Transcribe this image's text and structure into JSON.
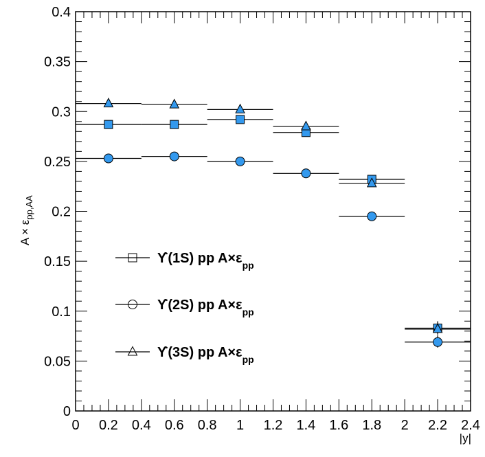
{
  "chart_data": {
    "type": "scatter",
    "xlabel": "|y|",
    "ylabel_main": "A × ε",
    "ylabel_sub": "pp,AA",
    "xlim": [
      0,
      2.4
    ],
    "ylim": [
      0,
      0.4
    ],
    "x_ticks": [
      "0",
      "0.2",
      "0.4",
      "0.6",
      "0.8",
      "1",
      "1.2",
      "1.4",
      "1.6",
      "1.8",
      "2",
      "2.2",
      "2.4"
    ],
    "y_ticks": [
      "0",
      "0.05",
      "0.1",
      "0.15",
      "0.2",
      "0.25",
      "0.3",
      "0.35",
      "0.4"
    ],
    "marker_color": "#3399ee",
    "legend_position": "center-left",
    "series": [
      {
        "name_main": "ϒ(1S) pp A×ε",
        "name_sub": "pp",
        "marker": "square",
        "points": [
          {
            "x": 0.2,
            "xlo": 0.0,
            "xhi": 0.4,
            "y": 0.287
          },
          {
            "x": 0.6,
            "xlo": 0.4,
            "xhi": 0.8,
            "y": 0.287
          },
          {
            "x": 1.0,
            "xlo": 0.8,
            "xhi": 1.2,
            "y": 0.292
          },
          {
            "x": 1.4,
            "xlo": 1.2,
            "xhi": 1.6,
            "y": 0.279
          },
          {
            "x": 1.8,
            "xlo": 1.6,
            "xhi": 2.0,
            "y": 0.232
          },
          {
            "x": 2.2,
            "xlo": 2.0,
            "xhi": 2.4,
            "y": 0.083
          }
        ]
      },
      {
        "name_main": "ϒ(2S) pp A×ε",
        "name_sub": "pp",
        "marker": "circle",
        "points": [
          {
            "x": 0.2,
            "xlo": 0.0,
            "xhi": 0.4,
            "y": 0.253
          },
          {
            "x": 0.6,
            "xlo": 0.4,
            "xhi": 0.8,
            "y": 0.255
          },
          {
            "x": 1.0,
            "xlo": 0.8,
            "xhi": 1.2,
            "y": 0.25
          },
          {
            "x": 1.4,
            "xlo": 1.2,
            "xhi": 1.6,
            "y": 0.238
          },
          {
            "x": 1.8,
            "xlo": 1.6,
            "xhi": 2.0,
            "y": 0.195
          },
          {
            "x": 2.2,
            "xlo": 2.0,
            "xhi": 2.4,
            "y": 0.069
          }
        ]
      },
      {
        "name_main": "ϒ(3S) pp A×ε",
        "name_sub": "pp",
        "marker": "triangle",
        "points": [
          {
            "x": 0.2,
            "xlo": 0.0,
            "xhi": 0.4,
            "y": 0.308
          },
          {
            "x": 0.6,
            "xlo": 0.4,
            "xhi": 0.8,
            "y": 0.307
          },
          {
            "x": 1.0,
            "xlo": 0.8,
            "xhi": 1.2,
            "y": 0.302
          },
          {
            "x": 1.4,
            "xlo": 1.2,
            "xhi": 1.6,
            "y": 0.285
          },
          {
            "x": 1.8,
            "xlo": 1.6,
            "xhi": 2.0,
            "y": 0.228
          },
          {
            "x": 2.2,
            "xlo": 2.0,
            "xhi": 2.4,
            "y": 0.082
          }
        ]
      }
    ]
  }
}
